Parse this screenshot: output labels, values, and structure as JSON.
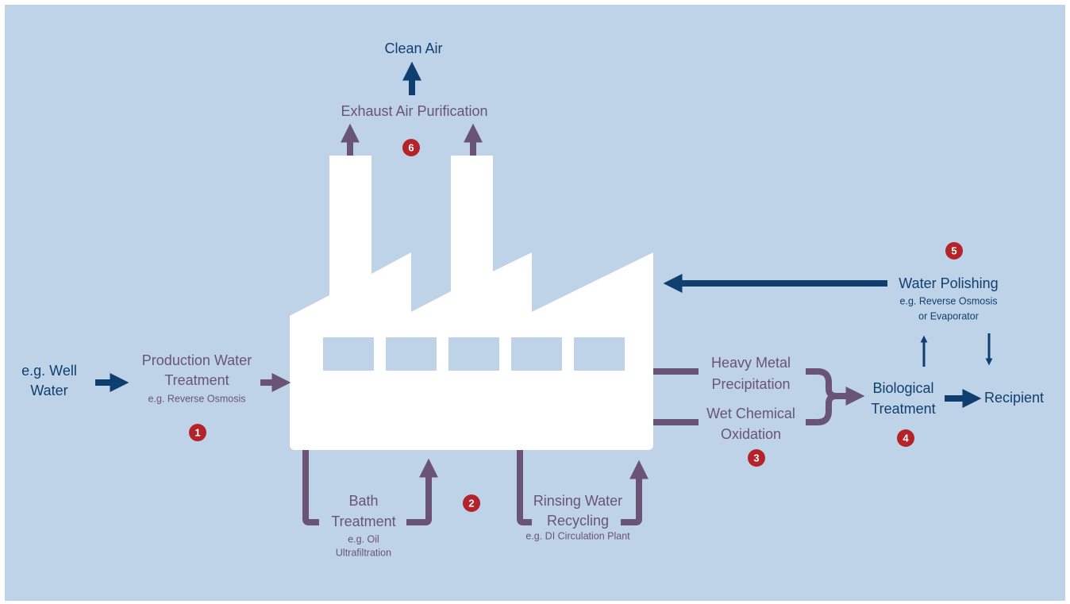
{
  "nodes": [
    {
      "lines": [
        "e.g. Well",
        "Water"
      ],
      "notes": []
    },
    {
      "lines": [
        "Production Water",
        "Treatment"
      ],
      "notes": [
        "e.g. Reverse Osmosis"
      ]
    },
    {
      "lines": [
        "Bath",
        "Treatment"
      ],
      "notes": [
        "e.g. Oil",
        "Ultrafiltration"
      ]
    },
    {
      "lines": [
        "Rinsing Water",
        "Recycling"
      ],
      "notes": [
        "e.g. DI Circulation Plant"
      ]
    },
    {
      "lines": [
        "Heavy Metal",
        "Precipitation"
      ],
      "notes": []
    },
    {
      "lines": [
        "Wet Chemical",
        "Oxidation"
      ],
      "notes": []
    },
    {
      "lines": [
        "Biological",
        "Treatment"
      ],
      "notes": []
    },
    {
      "lines": [
        "Recipient"
      ],
      "notes": []
    },
    {
      "lines": [
        "Water Polishing"
      ],
      "notes": [
        "e.g. Reverse Osmosis",
        "or Evaporator"
      ]
    },
    {
      "lines": [
        "Exhaust Air Purification"
      ],
      "notes": []
    },
    {
      "lines": [
        "Clean Air"
      ],
      "notes": []
    }
  ],
  "badges": [
    "1",
    "2",
    "3",
    "4",
    "5",
    "6"
  ]
}
